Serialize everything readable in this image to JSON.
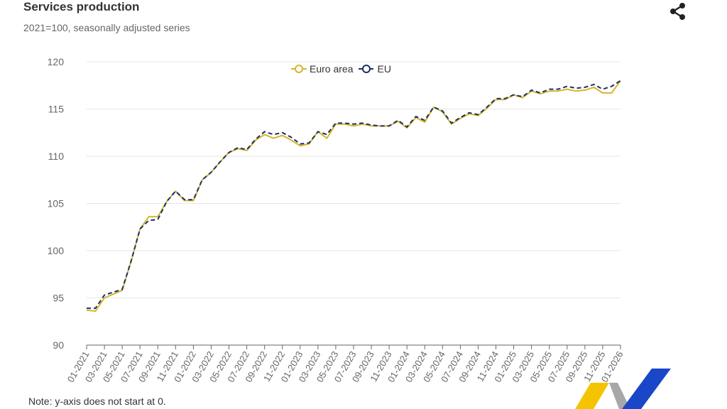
{
  "header": {
    "title": "Services production",
    "subtitle": "2021=100, seasonally adjusted series",
    "share_icon": "share-icon"
  },
  "footer": {
    "note": "Note: y-axis does not start at 0."
  },
  "colors": {
    "euro_area": "#d4b62a",
    "eu": "#1f2f66",
    "grid": "#e6e6e6",
    "axis_text": "#666666",
    "logo_yellow": "#f5c400",
    "logo_blue": "#1a47c8",
    "logo_grey": "#a7a7a7"
  },
  "chart_data": {
    "type": "line",
    "title": "Services production",
    "subtitle": "2021=100, seasonally adjusted series",
    "xlabel": "",
    "ylabel": "",
    "ylim": [
      90,
      120
    ],
    "yticks": [
      90,
      95,
      100,
      105,
      110,
      115,
      120
    ],
    "grid": true,
    "legend_position": "top-center",
    "xtick_labels": [
      "01-2021",
      "03-2021",
      "05-2021",
      "07-2021",
      "09-2021",
      "11-2021",
      "01-2022",
      "03-2022",
      "05-2022",
      "07-2022",
      "09-2022",
      "11-2022",
      "01-2023",
      "03-2023",
      "05-2023",
      "07-2023",
      "09-2023",
      "11-2023",
      "01-2024",
      "03-2024",
      "05-2024",
      "07-2024",
      "09-2024",
      "11-2024",
      "01-2025",
      "03-2025",
      "05-2025",
      "07-2025",
      "09-2025",
      "11-2025",
      "01-2026"
    ],
    "x": [
      "01-2021",
      "02-2021",
      "03-2021",
      "04-2021",
      "05-2021",
      "06-2021",
      "07-2021",
      "08-2021",
      "09-2021",
      "10-2021",
      "11-2021",
      "12-2021",
      "01-2022",
      "02-2022",
      "03-2022",
      "04-2022",
      "05-2022",
      "06-2022",
      "07-2022",
      "08-2022",
      "09-2022",
      "10-2022",
      "11-2022",
      "12-2022",
      "01-2023",
      "02-2023",
      "03-2023",
      "04-2023",
      "05-2023",
      "06-2023",
      "07-2023",
      "08-2023",
      "09-2023",
      "10-2023",
      "11-2023",
      "12-2023",
      "01-2024",
      "02-2024",
      "03-2024",
      "04-2024",
      "05-2024",
      "06-2024",
      "07-2024",
      "08-2024",
      "09-2024",
      "10-2024",
      "11-2024",
      "12-2024",
      "01-2025",
      "02-2025",
      "03-2025",
      "04-2025",
      "05-2025",
      "06-2025",
      "07-2025",
      "08-2025",
      "09-2025",
      "10-2025",
      "11-2025",
      "12-2025",
      "01-2026"
    ],
    "series": [
      {
        "name": "Euro area",
        "style": "solid",
        "values": [
          93.7,
          93.6,
          95.0,
          95.4,
          95.8,
          98.9,
          102.3,
          103.6,
          103.6,
          105.2,
          106.3,
          105.3,
          105.3,
          107.5,
          108.3,
          109.4,
          110.4,
          110.8,
          110.6,
          111.7,
          112.3,
          111.9,
          112.2,
          111.7,
          111.1,
          111.3,
          112.6,
          111.9,
          113.4,
          113.4,
          113.2,
          113.4,
          113.2,
          113.2,
          113.2,
          113.7,
          113.0,
          114.1,
          113.6,
          115.2,
          114.7,
          113.4,
          114.0,
          114.5,
          114.3,
          115.1,
          116.0,
          116.0,
          116.5,
          116.2,
          116.9,
          116.6,
          116.9,
          116.9,
          117.1,
          116.9,
          117.0,
          117.3,
          116.7,
          116.7,
          118.0
        ]
      },
      {
        "name": "EU",
        "style": "dashed",
        "values": [
          93.9,
          93.9,
          95.3,
          95.6,
          95.9,
          98.9,
          102.3,
          103.2,
          103.3,
          105.2,
          106.3,
          105.4,
          105.4,
          107.5,
          108.3,
          109.4,
          110.4,
          110.9,
          110.7,
          111.8,
          112.6,
          112.3,
          112.5,
          112.0,
          111.3,
          111.4,
          112.6,
          112.3,
          113.5,
          113.5,
          113.4,
          113.5,
          113.3,
          113.2,
          113.2,
          113.8,
          113.1,
          114.2,
          113.8,
          115.2,
          114.8,
          113.5,
          114.1,
          114.6,
          114.4,
          115.2,
          116.1,
          116.1,
          116.5,
          116.3,
          117.0,
          116.7,
          117.1,
          117.1,
          117.4,
          117.2,
          117.3,
          117.6,
          117.1,
          117.4,
          118.0
        ]
      }
    ]
  }
}
